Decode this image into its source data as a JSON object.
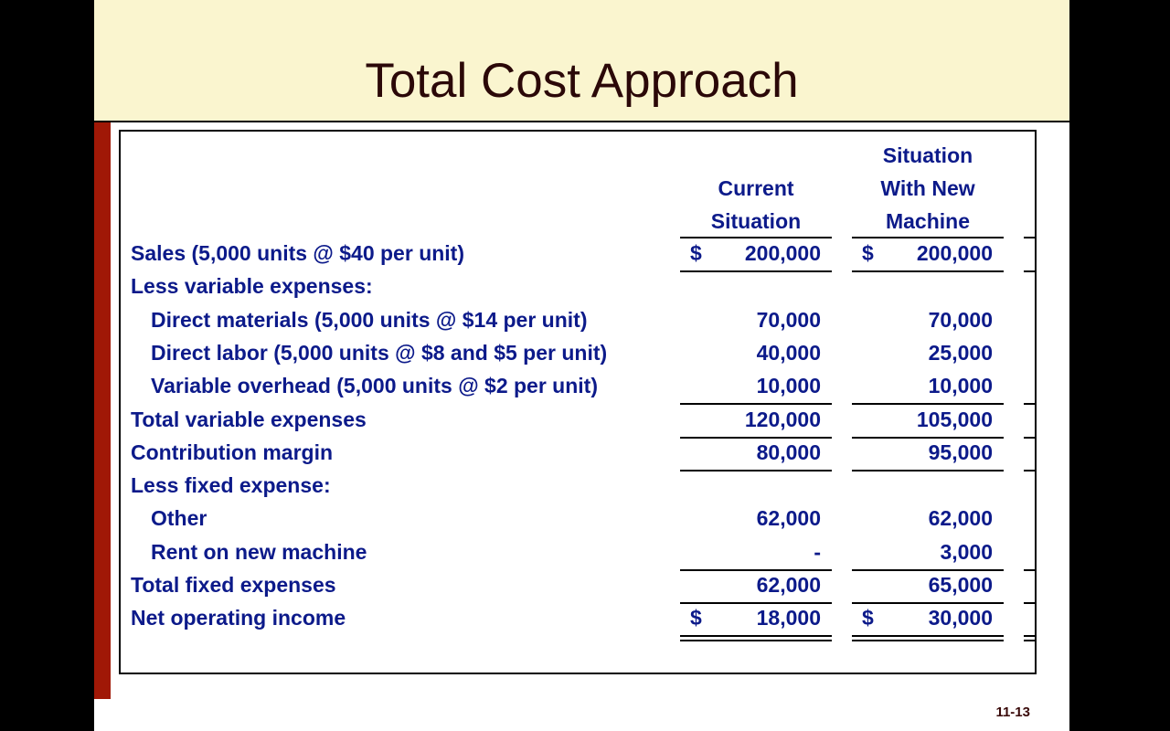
{
  "title": "Total Cost Approach",
  "page_number": "11-13",
  "headers": {
    "col1": [
      "Current",
      "Situation"
    ],
    "col2": [
      "Situation",
      "With New",
      "Machine"
    ]
  },
  "rows": [
    {
      "label": "Sales (5,000 units @ $40 per unit)",
      "indent": false,
      "c1_sign": "$",
      "c1": "200,000",
      "c2_sign": "$",
      "c2": "200,000",
      "rule": "single"
    },
    {
      "label": "Less variable expenses:",
      "indent": false,
      "c1_sign": "",
      "c1": "",
      "c2_sign": "",
      "c2": "",
      "rule": "none"
    },
    {
      "label": "Direct materials (5,000 units @ $14 per unit)",
      "indent": true,
      "c1_sign": "",
      "c1": "70,000",
      "c2_sign": "",
      "c2": "70,000",
      "rule": "none"
    },
    {
      "label": "Direct labor (5,000 units @ $8 and $5 per unit)",
      "indent": true,
      "c1_sign": "",
      "c1": "40,000",
      "c2_sign": "",
      "c2": "25,000",
      "rule": "none"
    },
    {
      "label": "Variable overhead (5,000 units @ $2 per unit)",
      "indent": true,
      "c1_sign": "",
      "c1": "10,000",
      "c2_sign": "",
      "c2": "10,000",
      "rule": "single"
    },
    {
      "label": "Total variable expenses",
      "indent": false,
      "c1_sign": "",
      "c1": "120,000",
      "c2_sign": "",
      "c2": "105,000",
      "rule": "single"
    },
    {
      "label": "Contribution margin",
      "indent": false,
      "c1_sign": "",
      "c1": "80,000",
      "c2_sign": "",
      "c2": "95,000",
      "rule": "single"
    },
    {
      "label": "Less fixed expense:",
      "indent": false,
      "c1_sign": "",
      "c1": "",
      "c2_sign": "",
      "c2": "",
      "rule": "none"
    },
    {
      "label": "Other",
      "indent": true,
      "c1_sign": "",
      "c1": "62,000",
      "c2_sign": "",
      "c2": "62,000",
      "rule": "none"
    },
    {
      "label": "Rent on new machine",
      "indent": true,
      "c1_sign": "",
      "c1": "-",
      "c2_sign": "",
      "c2": "3,000",
      "rule": "single"
    },
    {
      "label": "Total fixed expenses",
      "indent": false,
      "c1_sign": "",
      "c1": "62,000",
      "c2_sign": "",
      "c2": "65,000",
      "rule": "single"
    },
    {
      "label": "Net operating income",
      "indent": false,
      "c1_sign": "$",
      "c1": "18,000",
      "c2_sign": "$",
      "c2": "30,000",
      "rule": "double"
    }
  ],
  "colors": {
    "title_band": "#faf5cf",
    "accent_bar": "#a01806",
    "text": "#0c1a8a"
  }
}
